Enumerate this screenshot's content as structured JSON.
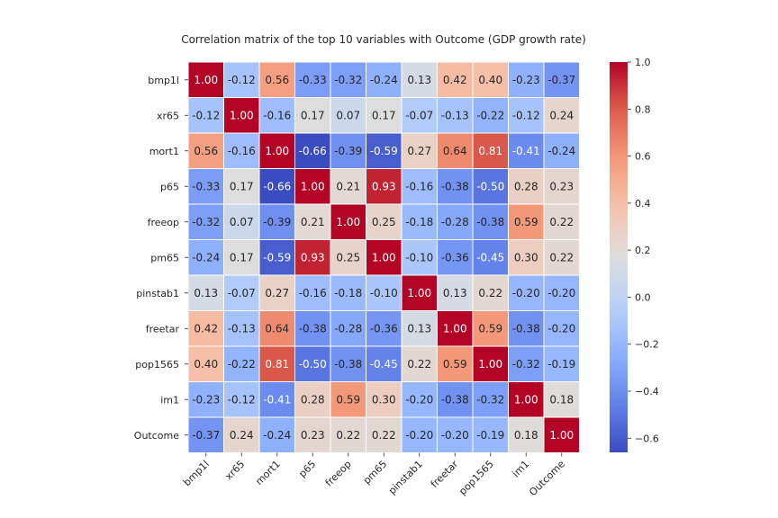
{
  "chart_data": {
    "type": "heatmap",
    "title": "Correlation matrix of the top 10 variables with Outcome (GDP growth rate)",
    "row_labels": [
      "bmp1l",
      "xr65",
      "mort1",
      "p65",
      "freeop",
      "pm65",
      "pinstab1",
      "freetar",
      "pop1565",
      "im1",
      "Outcome"
    ],
    "col_labels": [
      "bmp1l",
      "xr65",
      "mort1",
      "p65",
      "freeop",
      "pm65",
      "pinstab1",
      "freetar",
      "pop1565",
      "im1",
      "Outcome"
    ],
    "values": [
      [
        1.0,
        -0.12,
        0.56,
        -0.33,
        -0.32,
        -0.24,
        0.13,
        0.42,
        0.4,
        -0.23,
        -0.37
      ],
      [
        -0.12,
        1.0,
        -0.16,
        0.17,
        0.07,
        0.17,
        -0.07,
        -0.13,
        -0.22,
        -0.12,
        0.24
      ],
      [
        0.56,
        -0.16,
        1.0,
        -0.66,
        -0.39,
        -0.59,
        0.27,
        0.64,
        0.81,
        -0.41,
        -0.24
      ],
      [
        -0.33,
        0.17,
        -0.66,
        1.0,
        0.21,
        0.93,
        -0.16,
        -0.38,
        -0.5,
        0.28,
        0.23
      ],
      [
        -0.32,
        0.07,
        -0.39,
        0.21,
        1.0,
        0.25,
        -0.18,
        -0.28,
        -0.38,
        0.59,
        0.22
      ],
      [
        -0.24,
        0.17,
        -0.59,
        0.93,
        0.25,
        1.0,
        -0.1,
        -0.36,
        -0.45,
        0.3,
        0.22
      ],
      [
        0.13,
        -0.07,
        0.27,
        -0.16,
        -0.18,
        -0.1,
        1.0,
        0.13,
        0.22,
        -0.2,
        -0.2
      ],
      [
        0.42,
        -0.13,
        0.64,
        -0.38,
        -0.28,
        -0.36,
        0.13,
        1.0,
        0.59,
        -0.38,
        -0.2
      ],
      [
        0.4,
        -0.22,
        0.81,
        -0.5,
        -0.38,
        -0.45,
        0.22,
        0.59,
        1.0,
        -0.32,
        -0.19
      ],
      [
        -0.23,
        -0.12,
        -0.41,
        0.28,
        0.59,
        0.3,
        -0.2,
        -0.38,
        -0.32,
        1.0,
        0.18
      ],
      [
        -0.37,
        0.24,
        -0.24,
        0.23,
        0.22,
        0.22,
        -0.2,
        -0.2,
        -0.19,
        0.18,
        1.0
      ]
    ],
    "colormap": "coolwarm",
    "color_range": [
      -0.66,
      1.0
    ],
    "colorbar_ticks": [
      1.0,
      0.8,
      0.6,
      0.4,
      0.2,
      0.0,
      -0.2,
      -0.4,
      -0.6
    ],
    "colorbar_tick_labels": [
      "1.0",
      "0.8",
      "0.6",
      "0.4",
      "0.2",
      "0.0",
      "−0.2",
      "−0.4",
      "−0.6"
    ],
    "grid_line_color": "#ffffff",
    "annotations": true,
    "xlabel": "",
    "ylabel": ""
  }
}
